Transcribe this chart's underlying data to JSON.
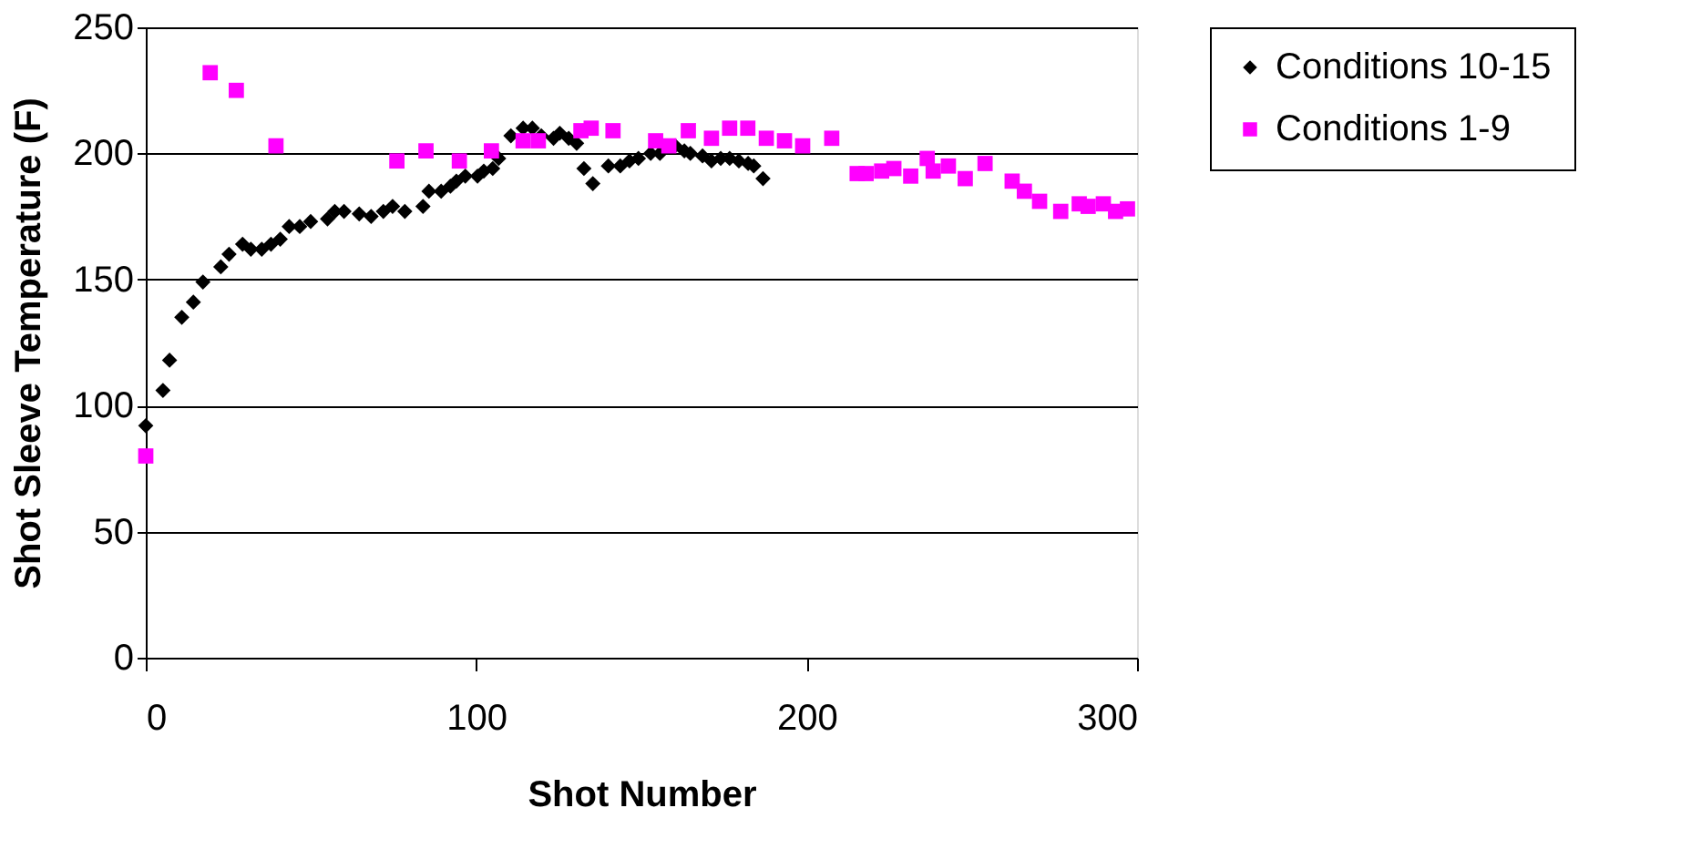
{
  "chart_data": {
    "type": "scatter",
    "xlabel": "Shot Number",
    "ylabel": "Shot Sleeve Temperature (F)",
    "xlim": [
      0,
      300
    ],
    "xticks": [
      0,
      100,
      200,
      300
    ],
    "ylim": [
      0,
      250
    ],
    "yticks": [
      0,
      50,
      100,
      150,
      200,
      250
    ],
    "grid": "y",
    "legend": "right",
    "series": [
      {
        "name": "Conditions 10-15",
        "color": "#000000",
        "marker": "diamond",
        "x": [
          0,
          5.2,
          7.2,
          10.9,
          14.4,
          17.3,
          22.7,
          25.2,
          29.3,
          31.8,
          35.1,
          37.9,
          40.7,
          43.4,
          46.6,
          49.9,
          55,
          57.2,
          60,
          64.6,
          68.2,
          71.9,
          74.7,
          78.4,
          83.9,
          85.7,
          89.4,
          92.2,
          94,
          96.7,
          100.4,
          102.3,
          105,
          106.8,
          110.5,
          114.2,
          117,
          119.7,
          123.4,
          125.3,
          128,
          130.4,
          132.6,
          135.3,
          140,
          143.6,
          146.4,
          149.1,
          152.8,
          155.6,
          160.2,
          163,
          164.8,
          168.5,
          171.2,
          174,
          176.7,
          179.5,
          182.3,
          184,
          186.8
        ],
        "values": [
          92,
          106,
          118,
          135,
          141,
          149,
          155,
          160,
          164,
          162,
          162,
          164,
          166,
          171,
          171,
          173,
          174,
          177,
          177,
          176,
          175,
          177,
          179,
          177,
          179,
          185,
          185,
          187,
          189,
          191,
          191,
          193,
          194,
          198,
          207,
          210,
          210,
          207,
          206,
          208,
          206,
          204,
          194,
          188,
          195,
          195,
          197,
          198,
          200,
          200,
          203,
          201,
          200,
          199,
          197,
          198,
          198,
          197,
          196,
          195,
          190
        ]
      },
      {
        "name": "Conditions 1-9",
        "color": "#ff00ff",
        "marker": "square",
        "x": [
          0,
          19.5,
          27.4,
          39.4,
          76,
          84.8,
          94.9,
          104.6,
          114.2,
          118.8,
          131.7,
          134.8,
          141.4,
          154.3,
          158.3,
          164.2,
          171.2,
          176.7,
          182.2,
          187.8,
          193.3,
          198.8,
          207.6,
          215.3,
          218,
          222.7,
          226.4,
          231.5,
          236.5,
          238.3,
          242.9,
          248,
          254,
          262.2,
          265.9,
          270.5,
          276.9,
          282.5,
          285.2,
          289.8,
          293.5,
          297.1
        ],
        "values": [
          80,
          232,
          225,
          203,
          197,
          201,
          197,
          201,
          205,
          205,
          209,
          210,
          209,
          205,
          203,
          209,
          206,
          210,
          210,
          206,
          205,
          203,
          206,
          192,
          192,
          193,
          194,
          191,
          198,
          193,
          195,
          190,
          196,
          189,
          185,
          181,
          177,
          180,
          179,
          180,
          177,
          178
        ]
      }
    ]
  }
}
